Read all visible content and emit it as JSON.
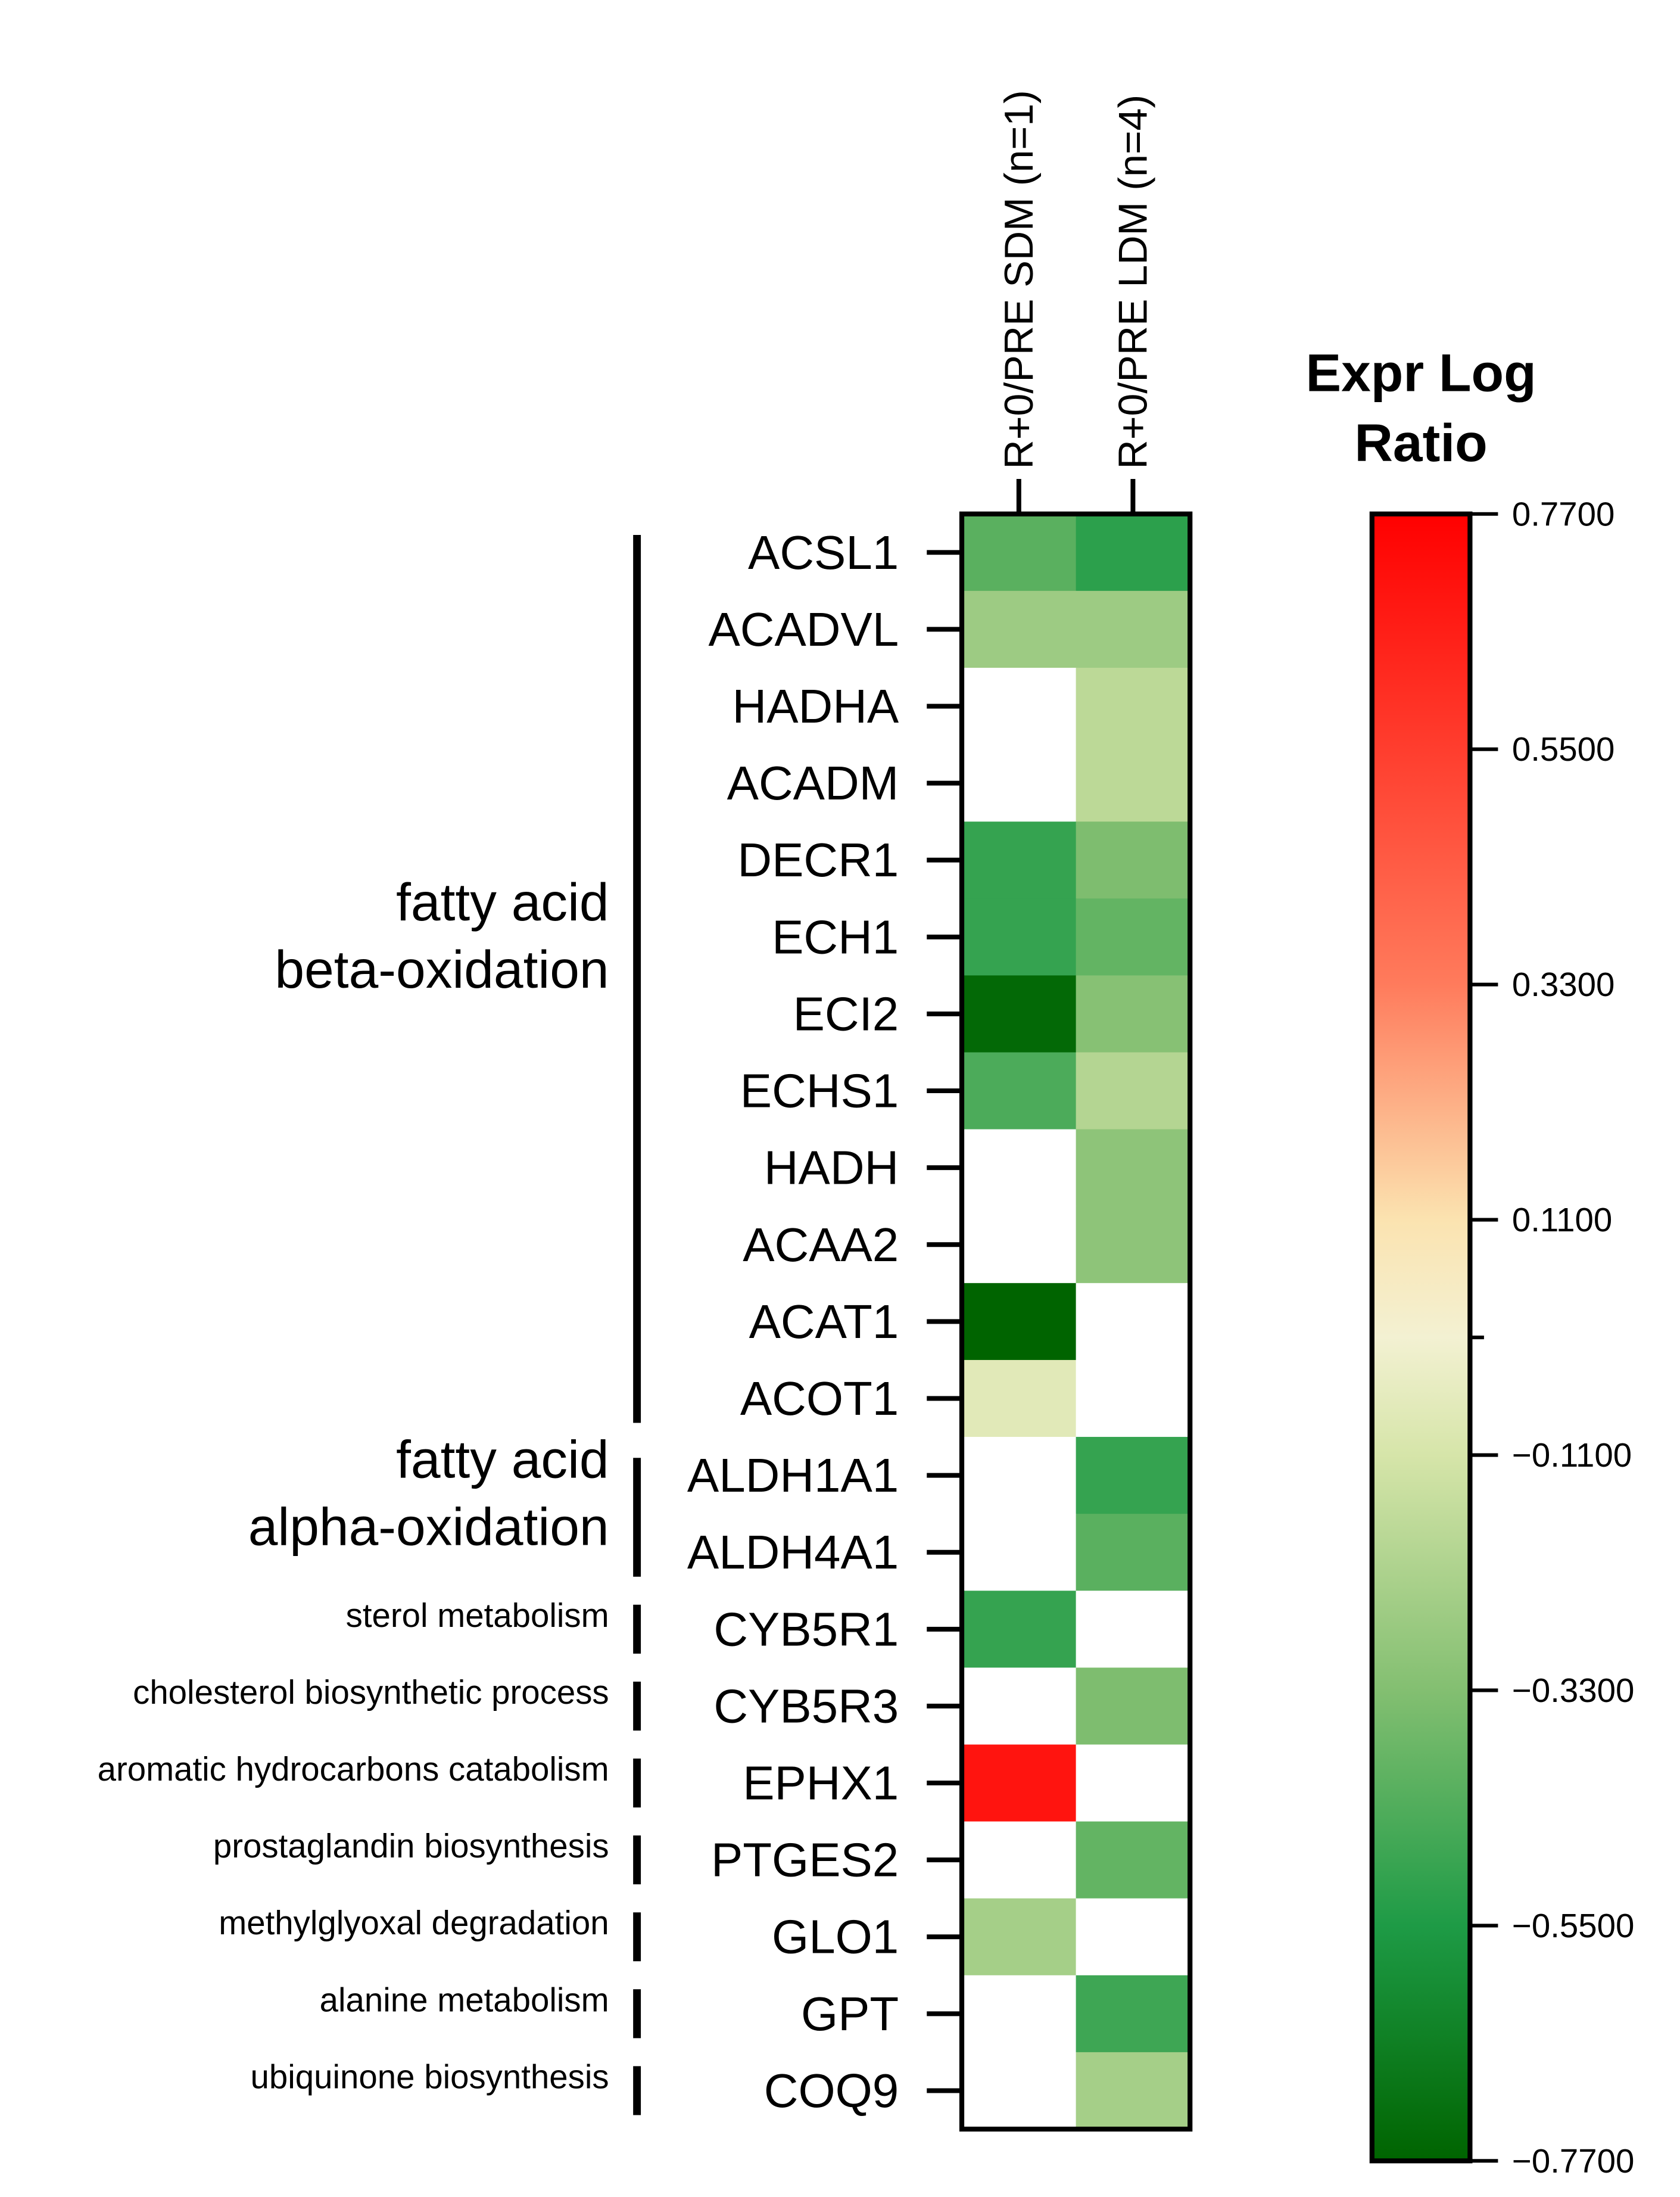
{
  "chart_data": {
    "type": "heatmap",
    "columns": [
      "R+0/PRE SDM (n=1)",
      "R+0/PRE LDM (n=4)"
    ],
    "rows": [
      "ACSL1",
      "ACADVL",
      "HADHA",
      "ACADM",
      "DECR1",
      "ECH1",
      "ECI2",
      "ECHS1",
      "HADH",
      "ACAA2",
      "ACAT1",
      "ACOT1",
      "ALDH1A1",
      "ALDH4A1",
      "CYB5R1",
      "CYB5R3",
      "EPHX1",
      "PTGES2",
      "GLO1",
      "GPT",
      "COQ9"
    ],
    "values": [
      [
        -0.42,
        -0.52
      ],
      [
        -0.26,
        -0.26
      ],
      [
        null,
        -0.18
      ],
      [
        null,
        -0.18
      ],
      [
        -0.5,
        -0.34
      ],
      [
        -0.5,
        -0.4
      ],
      [
        -0.75,
        -0.32
      ],
      [
        -0.45,
        -0.2
      ],
      [
        null,
        -0.3
      ],
      [
        null,
        -0.3
      ],
      [
        -0.77,
        null
      ],
      [
        -0.07,
        null
      ],
      [
        null,
        -0.5
      ],
      [
        null,
        -0.42
      ],
      [
        -0.5,
        null
      ],
      [
        null,
        -0.34
      ],
      [
        0.7,
        null
      ],
      [
        null,
        -0.4
      ],
      [
        -0.24,
        null
      ],
      [
        null,
        -0.48
      ],
      [
        null,
        -0.24
      ]
    ],
    "groups": [
      {
        "label_lines": [
          "fatty acid",
          "beta-oxidation"
        ],
        "start": 0,
        "end": 11,
        "size": "large"
      },
      {
        "label_lines": [
          "fatty acid",
          "alpha-oxidation"
        ],
        "start": 12,
        "end": 13,
        "size": "large"
      },
      {
        "label_lines": [
          "sterol metabolism"
        ],
        "start": 14,
        "end": 14,
        "size": "small"
      },
      {
        "label_lines": [
          "cholesterol biosynthetic process"
        ],
        "start": 15,
        "end": 15,
        "size": "small"
      },
      {
        "label_lines": [
          "aromatic hydrocarbons catabolism"
        ],
        "start": 16,
        "end": 16,
        "size": "small"
      },
      {
        "label_lines": [
          "prostaglandin biosynthesis"
        ],
        "start": 17,
        "end": 17,
        "size": "small"
      },
      {
        "label_lines": [
          "methylglyoxal degradation"
        ],
        "start": 18,
        "end": 18,
        "size": "small"
      },
      {
        "label_lines": [
          "alanine metabolism"
        ],
        "start": 19,
        "end": 19,
        "size": "small"
      },
      {
        "label_lines": [
          "ubiquinone biosynthesis"
        ],
        "start": 20,
        "end": 20,
        "size": "small"
      }
    ],
    "colorbar": {
      "title_lines": [
        "Expr Log",
        "Ratio"
      ],
      "min": -0.77,
      "max": 0.77,
      "ticks": [
        0.77,
        0.55,
        0.33,
        0.11,
        -0.11,
        -0.33,
        -0.55,
        -0.77
      ],
      "tick_labels": [
        "0.7700",
        "0.5500",
        "0.3300",
        "0.1100",
        "−0.1100",
        "−0.3300",
        "−0.5500",
        "−0.7700"
      ],
      "stops": [
        {
          "value": 0.77,
          "color": "#ff0000"
        },
        {
          "value": 0.33,
          "color": "#ff7b5c"
        },
        {
          "value": 0.11,
          "color": "#fbe3b0"
        },
        {
          "value": 0.0,
          "color": "#f3f1d2"
        },
        {
          "value": -0.11,
          "color": "#d6e5a9"
        },
        {
          "value": -0.33,
          "color": "#83bf71"
        },
        {
          "value": -0.55,
          "color": "#1e9b46"
        },
        {
          "value": -0.77,
          "color": "#006400"
        }
      ]
    },
    "missing_color": "#ffffff",
    "legend_position": "right"
  }
}
